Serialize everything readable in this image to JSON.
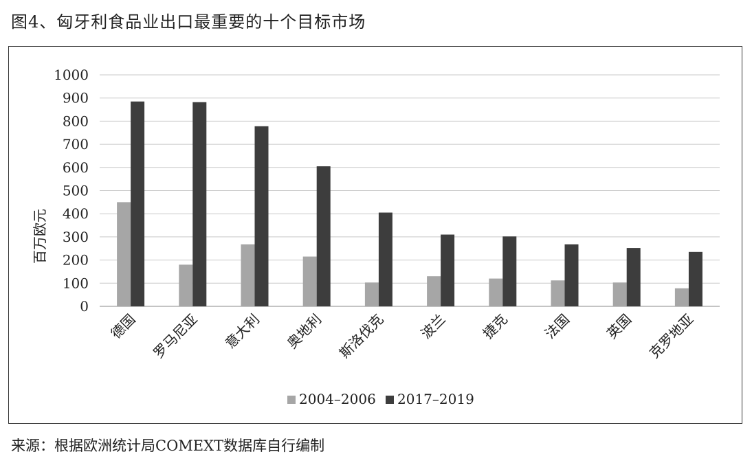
{
  "title": "图4、匈牙利食品业出口最重要的十个目标市场",
  "source": "来源：根据欧洲统计局COMEXT数据库自行编制",
  "chart_data": {
    "type": "bar",
    "ylabel": "百万欧元",
    "xlabel": "",
    "ylim": [
      0,
      1000
    ],
    "yticks": [
      0,
      100,
      200,
      300,
      400,
      500,
      600,
      700,
      800,
      900,
      1000
    ],
    "grid": true,
    "legend_position": "bottom",
    "categories": [
      "德国",
      "罗马尼亚",
      "意大利",
      "奥地利",
      "斯洛伐克",
      "波兰",
      "捷克",
      "法国",
      "英国",
      "克罗地亚"
    ],
    "series": [
      {
        "name": "2004–2006",
        "color": "#a6a6a6",
        "values": [
          450,
          180,
          268,
          215,
          103,
          130,
          120,
          112,
          103,
          78
        ]
      },
      {
        "name": "2017–2019",
        "color": "#3d3d3d",
        "values": [
          885,
          882,
          778,
          605,
          405,
          310,
          302,
          268,
          252,
          235
        ]
      }
    ]
  }
}
